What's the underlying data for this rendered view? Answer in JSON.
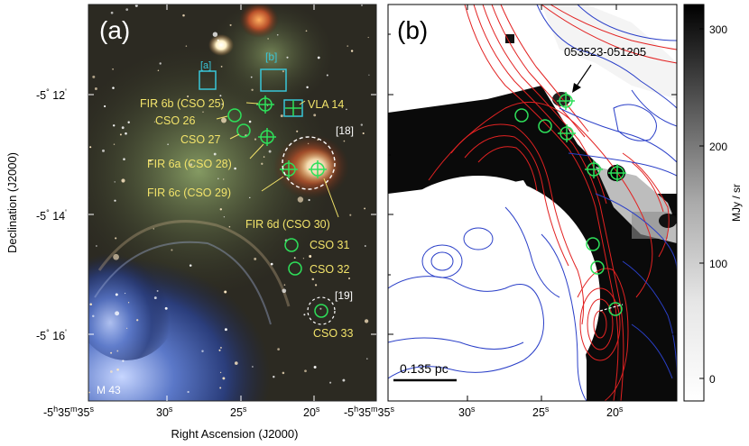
{
  "panel_a": {
    "tag": "(a)",
    "region": "M 43",
    "boxes": [
      "[a]",
      "[b]"
    ],
    "circles": [
      "[18]",
      "[19]"
    ],
    "sources": [
      "FIR 6b (CSO 25)",
      "VLA 14",
      "CSO 26",
      "CSO 27",
      "FIR 6a (CSO 28)",
      "FIR 6c (CSO 29)",
      "FIR 6d (CSO 30)",
      "CSO 31",
      "CSO 32",
      "CSO 33"
    ]
  },
  "panel_b": {
    "tag": "(b)",
    "star": "053523-051205",
    "scalebar": "0.135 pc"
  },
  "colorbar": {
    "unit": "MJy / sr",
    "ticks": [
      "0",
      "100",
      "200",
      "300"
    ]
  },
  "axes": {
    "ylabel": "Declination (J2000)",
    "xlabel": "Right Ascension (J2000)",
    "yticks": [
      {
        "deg": "-5",
        "sup1": "°",
        "m": "12",
        "sup2": "'"
      },
      {
        "deg": "-5",
        "sup1": "°",
        "m": "14",
        "sup2": "'"
      },
      {
        "deg": "-5",
        "sup1": "°",
        "m": "16",
        "sup2": "'"
      }
    ],
    "xticks_a": [
      {
        "pre": "-5",
        "h": "h",
        "m": "35",
        "mm": "m",
        "s": "35",
        "ss": "s"
      },
      {
        "v": "30",
        "ss": "s"
      },
      {
        "v": "25",
        "ss": "s"
      },
      {
        "v": "20",
        "ss": "s"
      }
    ],
    "xticks_b": [
      {
        "pre": "-5",
        "h": "h",
        "m": "35",
        "mm": "m",
        "s": "35",
        "ss": "s"
      },
      {
        "v": "30",
        "ss": "s"
      },
      {
        "v": "25",
        "ss": "s"
      },
      {
        "v": "20",
        "ss": "s"
      }
    ]
  },
  "colors": {
    "source_marker": "#2ee05a",
    "box_marker": "#39c6d8",
    "label_yellow": "#f2e36a",
    "contour_red": "#e22222",
    "contour_blue": "#2a3fc8"
  }
}
